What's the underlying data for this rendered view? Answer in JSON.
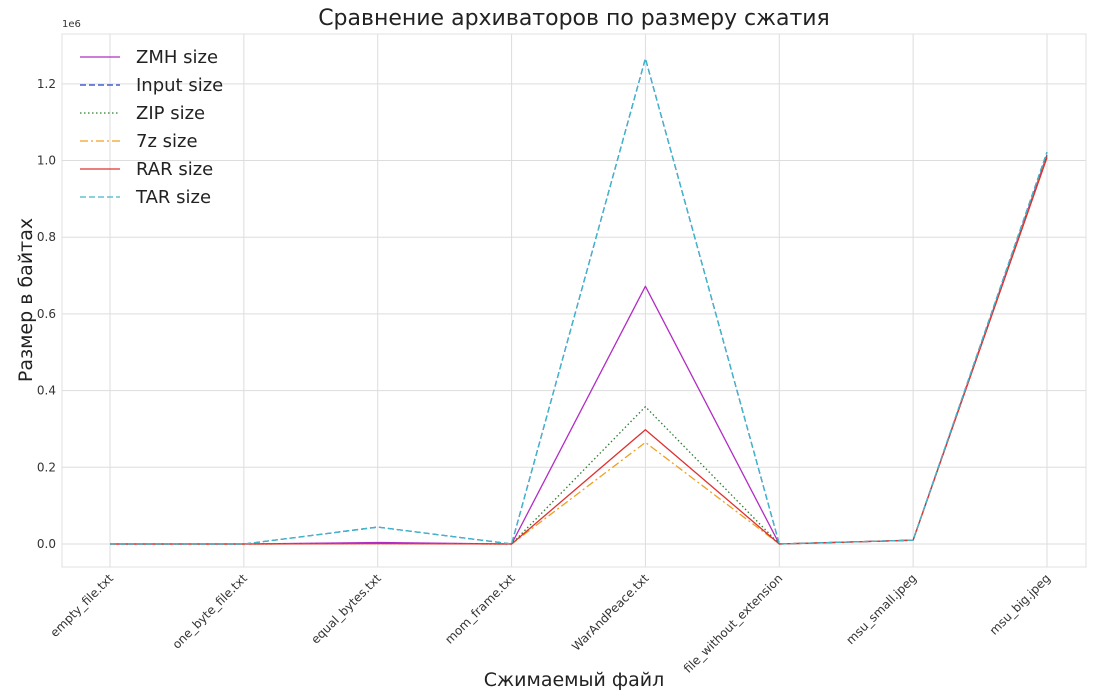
{
  "chart_data": {
    "type": "line",
    "title": "Сравнение архиваторов по размеру сжатия",
    "xlabel": "Сжимаемый файл",
    "ylabel": "Размер в байтах",
    "y_offset_label": "1e6",
    "y_scale": 1000000,
    "ylim": [
      -0.06,
      1.33
    ],
    "yticks": [
      0.0,
      0.2,
      0.4,
      0.6,
      0.8,
      1.0,
      1.2
    ],
    "ytick_labels": [
      "0.0",
      "0.2",
      "0.4",
      "0.6",
      "0.8",
      "1.0",
      "1.2"
    ],
    "grid": true,
    "legend_position": "top-left",
    "categories": [
      "empty_file.txt",
      "one_byte_file.txt",
      "equal_bytes.txt",
      "mom_frame.txt",
      "WarAndPeace.txt",
      "file_without_extension",
      "msu_small.jpeg",
      "msu_big.jpeg"
    ],
    "series": [
      {
        "name": "ZMH size",
        "color": "#b22cc4",
        "dash": "solid",
        "values": [
          0,
          0,
          0.004,
          0,
          0.672,
          0,
          0.01,
          1.015
        ]
      },
      {
        "name": "Input size",
        "color": "#2040d0",
        "dash": "dashed",
        "values": [
          0,
          0,
          0.044,
          0,
          1.266,
          0,
          0.01,
          1.022
        ]
      },
      {
        "name": "ZIP size",
        "color": "#2e7d32",
        "dash": "dotted",
        "values": [
          0,
          0,
          0.001,
          0,
          0.358,
          0,
          0.01,
          1.012
        ]
      },
      {
        "name": "7z size",
        "color": "#f0a020",
        "dash": "dashdot",
        "values": [
          0,
          0,
          0.001,
          0,
          0.265,
          0,
          0.01,
          1.01
        ]
      },
      {
        "name": "RAR size",
        "color": "#e03030",
        "dash": "solid",
        "values": [
          0,
          0,
          0.001,
          0,
          0.298,
          0,
          0.01,
          1.008
        ]
      },
      {
        "name": "TAR size",
        "color": "#40b8c8",
        "dash": "dashed",
        "values": [
          0,
          0,
          0.044,
          0,
          1.266,
          0,
          0.01,
          1.022
        ]
      }
    ]
  }
}
